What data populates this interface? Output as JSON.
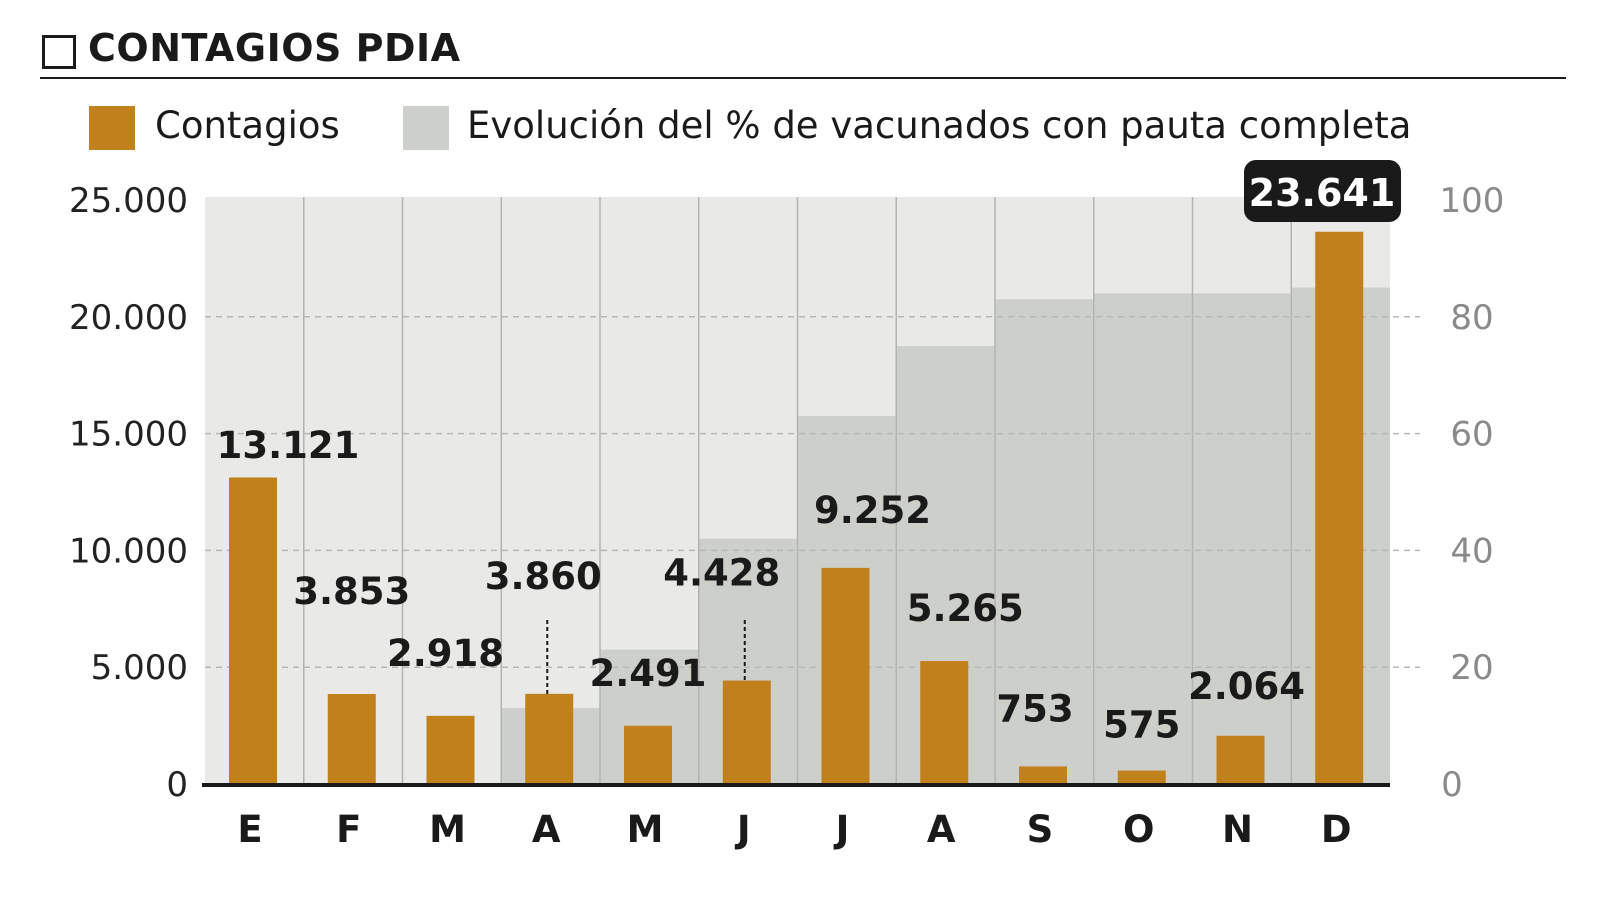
{
  "chart_data": {
    "type": "bar",
    "title": "CONTAGIOS PDIA",
    "categories": [
      "E",
      "F",
      "M",
      "A",
      "M",
      "J",
      "J",
      "A",
      "S",
      "O",
      "N",
      "D"
    ],
    "series": [
      {
        "name": "Contagios",
        "axis": "left",
        "color": "#c0801c",
        "values": [
          13121,
          3853,
          2918,
          3860,
          2491,
          4428,
          9252,
          5265,
          753,
          575,
          2064,
          23641
        ],
        "labels": [
          "13.121",
          "3.853",
          "2.918",
          "3.860",
          "2.491",
          "4.428",
          "9.252",
          "5.265",
          "753",
          "575",
          "2.064",
          "23.641"
        ]
      },
      {
        "name": "Evolución del % de vacunados con pauta completa",
        "axis": "right",
        "color": "#cdcfcb",
        "type": "area-step",
        "values": [
          0,
          0,
          0,
          13,
          23,
          42,
          63,
          75,
          83,
          84,
          84,
          85
        ]
      }
    ],
    "left_axis": {
      "range": [
        0,
        25000
      ],
      "ticks": [
        "0",
        "5.000",
        "10.000",
        "15.000",
        "20.000",
        "25.000"
      ]
    },
    "right_axis": {
      "range": [
        0,
        100
      ],
      "ticks": [
        "0",
        "20",
        "40",
        "60",
        "80",
        "100"
      ]
    },
    "grid": true,
    "legend": "top",
    "background_color": "#e9e9e7",
    "highlight": {
      "index": 11,
      "label": "23.641"
    }
  }
}
